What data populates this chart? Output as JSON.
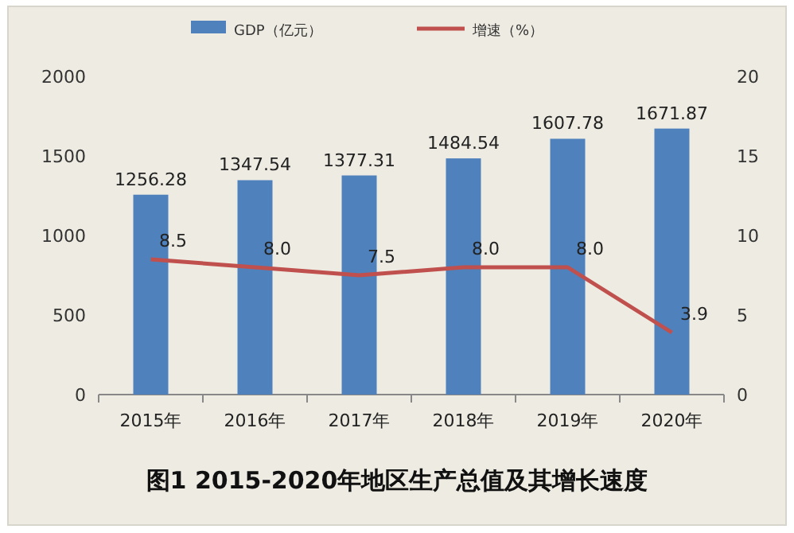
{
  "chart_data": {
    "type": "bar",
    "title": "图1 2015-2020年地区生产总值及其增长速度",
    "categories": [
      "2015年",
      "2016年",
      "2017年",
      "2018年",
      "2019年",
      "2020年"
    ],
    "series": [
      {
        "name": "GDP（亿元）",
        "color": "#4f81bd",
        "values": [
          1256.28,
          1347.54,
          1377.31,
          1484.54,
          1607.78,
          1671.87
        ],
        "value_labels": [
          "1256.28",
          "1347.54",
          "1377.31",
          "1484.54",
          "1607.78",
          "1671.87"
        ]
      },
      {
        "name": "增速（%）",
        "type": "line",
        "axis": "y2",
        "color": "#c0504d",
        "values": [
          8.5,
          8.0,
          7.5,
          8.0,
          8.0,
          3.9
        ],
        "value_labels": [
          "8.5",
          "8.0",
          "7.5",
          "8.0",
          "8.0",
          "3.9"
        ]
      }
    ],
    "ylim": [
      0,
      2000
    ],
    "yticks": [
      0,
      500,
      1000,
      1500,
      2000
    ],
    "y2lim": [
      0,
      20
    ],
    "y2ticks": [
      0,
      5,
      10,
      15,
      20
    ],
    "legend": "top",
    "grid": false
  }
}
